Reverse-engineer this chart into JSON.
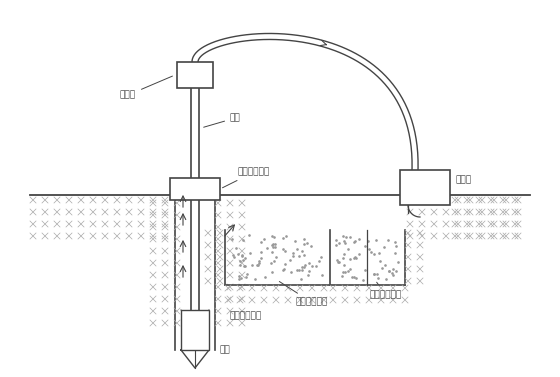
{
  "bg_color": "#ffffff",
  "line_color": "#444444",
  "fig_width": 5.6,
  "fig_height": 3.77,
  "dpi": 100,
  "labels": {
    "water_nozzle": "水龙头",
    "drill_rod": "钒杆",
    "drill_clamp": "钒机回转装置",
    "mud_pump": "泥浆泵",
    "settling_pool": "沉淤池及沉渣",
    "mud_pool": "泥浆池及泥浆",
    "mud_direction": "泥浆循环方向",
    "drill_bit": "钒头"
  }
}
